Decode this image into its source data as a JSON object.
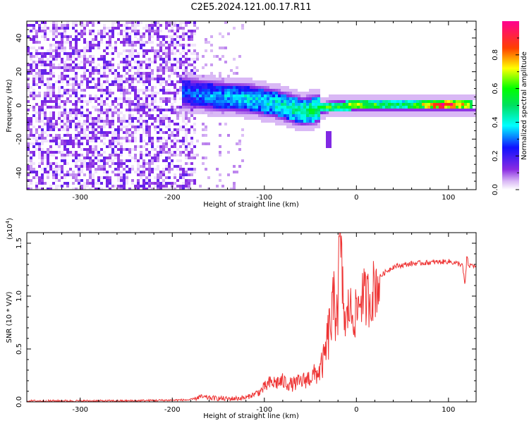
{
  "title": "C2E5.2024.121.00.17.R11",
  "colorbar": {
    "label": "Normalized spectral amplitude",
    "ticks": [
      "0.0",
      "0.2",
      "0.4",
      "0.6",
      "0.8"
    ],
    "tick_values": [
      0.0,
      0.2,
      0.4,
      0.6,
      0.8
    ],
    "range": [
      0,
      1
    ]
  },
  "chart_data": [
    {
      "type": "heatmap",
      "xlabel": "Height of straight line (km)",
      "ylabel": "Frequency (Hz)",
      "xlim": [
        -358,
        130
      ],
      "ylim": [
        -50,
        50
      ],
      "xticks": [
        -300,
        -200,
        -100,
        0,
        100
      ],
      "yticks": [
        -40,
        -20,
        0,
        20,
        40
      ],
      "colorscale": "rainbow (purple-blue-cyan-green-yellow-red-magenta)",
      "description_points": {
        "noise_region_x": [
          -358,
          -175
        ],
        "signal_band": [
          {
            "x": -180,
            "f": 8,
            "amp": 0.3
          },
          {
            "x": -150,
            "f": 6,
            "amp": 0.35
          },
          {
            "x": -120,
            "f": 5,
            "amp": 0.4
          },
          {
            "x": -90,
            "f": 2,
            "amp": 0.42
          },
          {
            "x": -60,
            "f": -3,
            "amp": 0.5
          },
          {
            "x": -30,
            "f": 0,
            "amp": 0.6
          },
          {
            "x": 0,
            "f": 1,
            "amp": 0.7
          },
          {
            "x": 30,
            "f": 1,
            "amp": 0.55
          },
          {
            "x": 60,
            "f": 1,
            "amp": 0.6
          },
          {
            "x": 90,
            "f": 1,
            "amp": 0.95
          },
          {
            "x": 125,
            "f": 1,
            "amp": 0.7
          }
        ]
      }
    },
    {
      "type": "line",
      "xlabel": "Height of straight line (km)",
      "ylabel": "SNR (10 * V/V)",
      "y_multiplier": "(x10",
      "y_multiplier_exp": "4",
      "y_multiplier_close": ")",
      "xlim": [
        -358,
        130
      ],
      "ylim": [
        0,
        1.6
      ],
      "xticks": [
        -300,
        -200,
        -100,
        0,
        100
      ],
      "yticks": [
        "0.0",
        "0.5",
        "1.0",
        "1.5"
      ],
      "ytick_values": [
        0.0,
        0.5,
        1.0,
        1.5
      ],
      "series": [
        {
          "color": "#ee3333",
          "x": [
            -358,
            -250,
            -180,
            -170,
            -160,
            -140,
            -120,
            -105,
            -95,
            -80,
            -70,
            -60,
            -50,
            -40,
            -35,
            -28,
            -25,
            -20,
            -18,
            -15,
            -12,
            -8,
            -5,
            0,
            5,
            10,
            15,
            20,
            25,
            30,
            40,
            60,
            80,
            100,
            115,
            118,
            120,
            122,
            125,
            130
          ],
          "y": [
            0.01,
            0.01,
            0.02,
            0.05,
            0.04,
            0.03,
            0.04,
            0.1,
            0.18,
            0.2,
            0.17,
            0.2,
            0.24,
            0.3,
            0.42,
            0.78,
            0.9,
            1.05,
            1.6,
            1.1,
            0.7,
            0.95,
            0.85,
            0.85,
            1.05,
            1.0,
            1.02,
            1.12,
            1.18,
            1.22,
            1.28,
            1.31,
            1.32,
            1.33,
            1.3,
            1.1,
            1.38,
            1.28,
            1.3,
            1.28
          ]
        }
      ]
    }
  ]
}
